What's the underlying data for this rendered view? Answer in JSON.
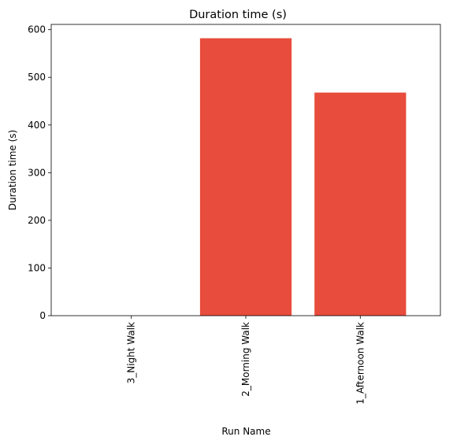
{
  "chart_data": {
    "type": "bar",
    "title": "Duration time (s)",
    "xlabel": "Run Name",
    "ylabel": "Duration time (s)",
    "categories": [
      "3_Night Walk",
      "2_Morning Walk",
      "1_Afternoon Walk"
    ],
    "values": [
      0,
      582,
      468
    ],
    "ylim": [
      0,
      611
    ],
    "yticks": [
      0,
      100,
      200,
      300,
      400,
      500,
      600
    ],
    "bar_color": "#e74c3c",
    "grid": false,
    "legend": false
  }
}
